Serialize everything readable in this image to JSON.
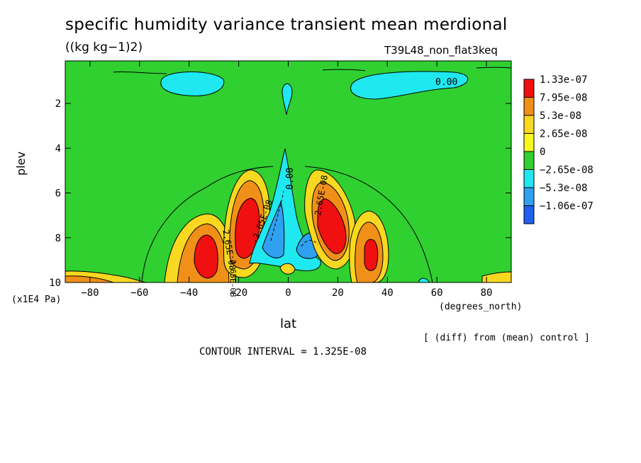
{
  "chart_data": {
    "type": "contour",
    "title": "specific humidity variance transient mean merdional",
    "units_label": "((kg kg−1)2)",
    "run_label": "T39L48_non_flat3keq",
    "xlabel": "lat",
    "xunits": "(degrees_north)",
    "ylabel": "plev",
    "yunits": "(x1E4 Pa)",
    "x_ticks": [
      -80,
      -60,
      -40,
      -20,
      0,
      20,
      40,
      60,
      80
    ],
    "y_ticks": [
      2,
      4,
      6,
      8,
      10
    ],
    "xlim": [
      -90,
      90
    ],
    "ylim": [
      10,
      0.1
    ],
    "legend": {
      "placement": "right",
      "labels": [
        "1.33e-07",
        "7.95e-08",
        "5.3e-08",
        "2.65e-08",
        "0",
        "−2.65e-08",
        "−5.3e-08",
        "−1.06e-07"
      ],
      "colors": [
        "#f01010",
        "#f09018",
        "#f8d820",
        "#f8f820",
        "#30d030",
        "#20e8f0",
        "#30a0f0",
        "#2060f0"
      ]
    },
    "contour_labels": [
      {
        "text": "0.00",
        "x": 65,
        "y": 1.05
      },
      {
        "text": "0.00",
        "x": 0,
        "y": 5.9,
        "rotate": -90
      },
      {
        "text": "2.65E-08",
        "x": 12,
        "y": 6.3,
        "rotate": -80
      },
      {
        "text": "-2.65E-08",
        "x": -9,
        "y": 7.9,
        "rotate": -70
      },
      {
        "text": "-2.65E-08",
        "x": -21,
        "y": 8.3,
        "rotate": 80
      },
      {
        "text": "-2.65E-08",
        "x": -19,
        "y": 9.4,
        "rotate": 90
      }
    ],
    "contour_interval": "1.325E-08",
    "note": "[ (diff) from (mean) control ]",
    "fields": [
      {
        "name": "red maxima",
        "lat": [
          -33,
          -17,
          15,
          32
        ],
        "plev": [
          8.5,
          7.8,
          7.5,
          8.6
        ],
        "level": "1.33e-07"
      },
      {
        "name": "negative minima",
        "lat": [
          -6,
          8
        ],
        "plev": [
          8.3,
          8.4
        ],
        "level": "-5.3e-08"
      }
    ]
  },
  "strings": {
    "title": "specific humidity variance transient mean merdional",
    "units": "((kg kg−1)2)",
    "run": "T39L48_non_flat3keq",
    "ylabel": "plev",
    "yunits": "(x1E4 Pa)",
    "xlabel": "lat",
    "xunits": "(degrees_north)",
    "diff": "[ (diff) from (mean) control ]",
    "contour_interval": "CONTOUR INTERVAL = 1.325E-08"
  }
}
